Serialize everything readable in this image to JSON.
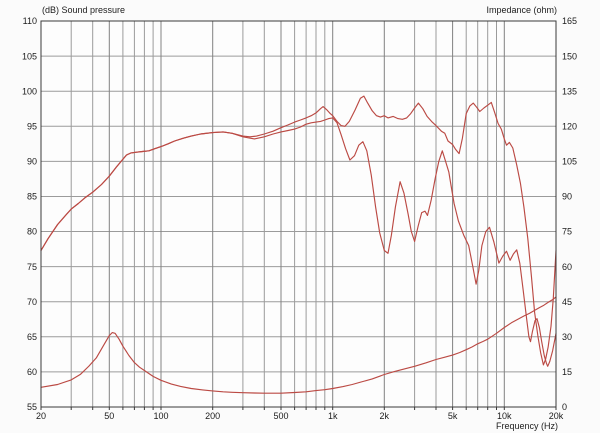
{
  "chart_data": {
    "type": "line",
    "title": "",
    "x_axis": {
      "label": "Frequency  (Hz)",
      "scale": "log",
      "min": 20,
      "max": 20000,
      "ticks": [
        [
          20,
          "20"
        ],
        [
          50,
          "50"
        ],
        [
          100,
          "100"
        ],
        [
          200,
          "200"
        ],
        [
          500,
          "500"
        ],
        [
          1000,
          "1k"
        ],
        [
          2000,
          "2k"
        ],
        [
          5000,
          "5k"
        ],
        [
          10000,
          "10k"
        ],
        [
          20000,
          "20k"
        ]
      ],
      "gridlines": [
        30,
        40,
        50,
        60,
        70,
        80,
        90,
        100,
        200,
        300,
        400,
        500,
        600,
        700,
        800,
        900,
        1000,
        2000,
        3000,
        4000,
        5000,
        6000,
        7000,
        8000,
        9000,
        10000
      ],
      "major_gridlines": [
        50,
        100,
        200,
        500,
        1000,
        2000,
        5000,
        10000
      ]
    },
    "y_left": {
      "label": "(dB)  Sound pressure",
      "min": 55,
      "max": 110,
      "step": 5,
      "ticks": [
        [
          110,
          "110"
        ],
        [
          105,
          "105"
        ],
        [
          100,
          "100"
        ],
        [
          95,
          "95"
        ],
        [
          90,
          "90"
        ],
        [
          85,
          "85"
        ],
        [
          80,
          "80"
        ],
        [
          75,
          "75"
        ],
        [
          70,
          "70"
        ],
        [
          65,
          "65"
        ],
        [
          60,
          "60"
        ],
        [
          55,
          "55"
        ]
      ]
    },
    "y_right": {
      "label": "Impedance  (ohm)",
      "min": 0,
      "max": 165,
      "step": 15,
      "ticks": [
        [
          165,
          "165"
        ],
        [
          150,
          "150"
        ],
        [
          135,
          "135"
        ],
        [
          120,
          "120"
        ],
        [
          105,
          "105"
        ],
        [
          90,
          "90"
        ],
        [
          75,
          "75"
        ],
        [
          60,
          "60"
        ],
        [
          45,
          "45"
        ],
        [
          30,
          "30"
        ],
        [
          15,
          "15"
        ],
        [
          0,
          "0"
        ]
      ]
    },
    "curve_color": "#bb4a44",
    "grid_minor_color": "#9b9b9b",
    "grid_major_color": "#828282",
    "border_color": "#3a3a3a",
    "series": [
      {
        "name": "spl-on-axis",
        "axis": "left",
        "unit": "dB",
        "points": [
          [
            20,
            77.3
          ],
          [
            22,
            79
          ],
          [
            25,
            81
          ],
          [
            28,
            82.4
          ],
          [
            30,
            83.2
          ],
          [
            33,
            84
          ],
          [
            36,
            84.8
          ],
          [
            40,
            85.6
          ],
          [
            45,
            86.7
          ],
          [
            50,
            87.9
          ],
          [
            55,
            89.2
          ],
          [
            60,
            90.3
          ],
          [
            63,
            90.9
          ],
          [
            67,
            91.2
          ],
          [
            72,
            91.3
          ],
          [
            78,
            91.4
          ],
          [
            85,
            91.5
          ],
          [
            92,
            91.8
          ],
          [
            100,
            92.1
          ],
          [
            110,
            92.5
          ],
          [
            120,
            92.9
          ],
          [
            135,
            93.3
          ],
          [
            150,
            93.6
          ],
          [
            170,
            93.9
          ],
          [
            200,
            94.1
          ],
          [
            230,
            94.2
          ],
          [
            260,
            94
          ],
          [
            300,
            93.6
          ],
          [
            330,
            93.5
          ],
          [
            360,
            93.6
          ],
          [
            400,
            93.9
          ],
          [
            450,
            94.3
          ],
          [
            500,
            94.8
          ],
          [
            550,
            95.2
          ],
          [
            600,
            95.6
          ],
          [
            650,
            95.9
          ],
          [
            700,
            96.2
          ],
          [
            750,
            96.5
          ],
          [
            800,
            96.9
          ],
          [
            850,
            97.5
          ],
          [
            880,
            97.8
          ],
          [
            920,
            97.4
          ],
          [
            960,
            96.9
          ],
          [
            1000,
            96.5
          ],
          [
            1060,
            95.7
          ],
          [
            1120,
            95.1
          ],
          [
            1180,
            95
          ],
          [
            1250,
            95.7
          ],
          [
            1350,
            97.3
          ],
          [
            1450,
            99
          ],
          [
            1520,
            99.3
          ],
          [
            1600,
            98.3
          ],
          [
            1700,
            97.2
          ],
          [
            1800,
            96.5
          ],
          [
            1900,
            96.3
          ],
          [
            2000,
            96.5
          ],
          [
            2100,
            96.2
          ],
          [
            2250,
            96.4
          ],
          [
            2400,
            96.1
          ],
          [
            2550,
            96
          ],
          [
            2700,
            96.2
          ],
          [
            2850,
            96.8
          ],
          [
            3000,
            97.6
          ],
          [
            3160,
            98.3
          ],
          [
            3350,
            97.5
          ],
          [
            3550,
            96.4
          ],
          [
            3800,
            95.6
          ],
          [
            4000,
            95.1
          ],
          [
            4300,
            94.3
          ],
          [
            4500,
            94
          ],
          [
            4700,
            92.9
          ],
          [
            5000,
            92.4
          ],
          [
            5200,
            91.7
          ],
          [
            5450,
            91.1
          ],
          [
            5700,
            93.3
          ],
          [
            6000,
            96.8
          ],
          [
            6300,
            97.9
          ],
          [
            6600,
            98.3
          ],
          [
            6900,
            97.7
          ],
          [
            7200,
            97.1
          ],
          [
            7600,
            97.6
          ],
          [
            8000,
            98
          ],
          [
            8400,
            98.4
          ],
          [
            8800,
            96.9
          ],
          [
            9200,
            95.4
          ],
          [
            9600,
            94.6
          ],
          [
            10000,
            93.2
          ],
          [
            10300,
            92.3
          ],
          [
            10700,
            92.7
          ],
          [
            11200,
            91.9
          ],
          [
            11800,
            89.5
          ],
          [
            12400,
            86.9
          ],
          [
            13000,
            83.5
          ],
          [
            13700,
            79
          ],
          [
            14400,
            73.5
          ],
          [
            15000,
            68.5
          ],
          [
            15700,
            65
          ],
          [
            16300,
            62.7
          ],
          [
            16900,
            61
          ],
          [
            17400,
            61.8
          ],
          [
            18000,
            63.5
          ],
          [
            18700,
            66.5
          ],
          [
            19300,
            70.5
          ],
          [
            20000,
            77.3
          ]
        ]
      },
      {
        "name": "spl-off-axis",
        "axis": "left",
        "unit": "dB",
        "points": [
          [
            20,
            77.3
          ],
          [
            22,
            79
          ],
          [
            25,
            81
          ],
          [
            28,
            82.4
          ],
          [
            30,
            83.2
          ],
          [
            33,
            84
          ],
          [
            36,
            84.8
          ],
          [
            40,
            85.6
          ],
          [
            45,
            86.7
          ],
          [
            50,
            87.9
          ],
          [
            55,
            89.2
          ],
          [
            60,
            90.3
          ],
          [
            63,
            90.9
          ],
          [
            67,
            91.2
          ],
          [
            72,
            91.3
          ],
          [
            78,
            91.4
          ],
          [
            85,
            91.5
          ],
          [
            92,
            91.8
          ],
          [
            100,
            92.1
          ],
          [
            110,
            92.5
          ],
          [
            120,
            92.9
          ],
          [
            135,
            93.3
          ],
          [
            150,
            93.6
          ],
          [
            170,
            93.9
          ],
          [
            200,
            94.1
          ],
          [
            230,
            94.2
          ],
          [
            260,
            94
          ],
          [
            300,
            93.5
          ],
          [
            350,
            93.2
          ],
          [
            400,
            93.5
          ],
          [
            450,
            93.9
          ],
          [
            500,
            94.2
          ],
          [
            550,
            94.4
          ],
          [
            600,
            94.6
          ],
          [
            650,
            94.9
          ],
          [
            700,
            95.3
          ],
          [
            750,
            95.5
          ],
          [
            800,
            95.6
          ],
          [
            850,
            95.7
          ],
          [
            900,
            95.9
          ],
          [
            950,
            96.1
          ],
          [
            1000,
            96.2
          ],
          [
            1060,
            95.5
          ],
          [
            1120,
            93.8
          ],
          [
            1190,
            91.8
          ],
          [
            1260,
            90.2
          ],
          [
            1340,
            90.8
          ],
          [
            1420,
            92.3
          ],
          [
            1500,
            92.8
          ],
          [
            1580,
            91.5
          ],
          [
            1680,
            88
          ],
          [
            1780,
            83.5
          ],
          [
            1880,
            79.8
          ],
          [
            2000,
            77.3
          ],
          [
            2100,
            76.9
          ],
          [
            2200,
            79.5
          ],
          [
            2320,
            83.5
          ],
          [
            2470,
            87.1
          ],
          [
            2600,
            85.5
          ],
          [
            2750,
            82.5
          ],
          [
            2870,
            80
          ],
          [
            3000,
            78.6
          ],
          [
            3150,
            80.8
          ],
          [
            3300,
            82.7
          ],
          [
            3450,
            82.9
          ],
          [
            3570,
            82.3
          ],
          [
            3750,
            84.5
          ],
          [
            3950,
            87.5
          ],
          [
            4150,
            90
          ],
          [
            4350,
            91.5
          ],
          [
            4550,
            90
          ],
          [
            4750,
            88.5
          ],
          [
            4900,
            86.5
          ],
          [
            5100,
            84
          ],
          [
            5400,
            81.5
          ],
          [
            5800,
            79.5
          ],
          [
            6200,
            78
          ],
          [
            6550,
            75
          ],
          [
            6850,
            72.5
          ],
          [
            7100,
            74.5
          ],
          [
            7400,
            78
          ],
          [
            7800,
            80
          ],
          [
            8200,
            80.6
          ],
          [
            8700,
            78.5
          ],
          [
            9300,
            75.5
          ],
          [
            9800,
            76.5
          ],
          [
            10300,
            77.2
          ],
          [
            10800,
            75.9
          ],
          [
            11300,
            76.8
          ],
          [
            11800,
            77.4
          ],
          [
            12300,
            75.5
          ],
          [
            12900,
            71.5
          ],
          [
            13500,
            67.5
          ],
          [
            13900,
            65
          ],
          [
            14200,
            64.3
          ],
          [
            14600,
            65.8
          ],
          [
            15100,
            67.3
          ],
          [
            15500,
            67.6
          ],
          [
            16000,
            66.3
          ],
          [
            16500,
            64.3
          ],
          [
            17100,
            62.3
          ],
          [
            17600,
            61.2
          ],
          [
            17900,
            60.8
          ],
          [
            18400,
            61.5
          ],
          [
            19100,
            63
          ],
          [
            20000,
            65.5
          ]
        ]
      },
      {
        "name": "impedance",
        "axis": "right",
        "unit": "ohm",
        "points": [
          [
            20,
            8.4
          ],
          [
            25,
            9.6
          ],
          [
            30,
            11.6
          ],
          [
            34,
            14
          ],
          [
            38,
            17.5
          ],
          [
            42,
            21
          ],
          [
            46,
            26
          ],
          [
            50,
            30.5
          ],
          [
            52,
            31.8
          ],
          [
            54,
            31.5
          ],
          [
            57,
            29
          ],
          [
            60,
            26
          ],
          [
            65,
            22
          ],
          [
            70,
            19
          ],
          [
            75,
            17
          ],
          [
            80,
            15.6
          ],
          [
            90,
            13.1
          ],
          [
            100,
            11.4
          ],
          [
            115,
            9.8
          ],
          [
            130,
            8.8
          ],
          [
            150,
            7.9
          ],
          [
            175,
            7.3
          ],
          [
            200,
            6.9
          ],
          [
            230,
            6.5
          ],
          [
            260,
            6.3
          ],
          [
            300,
            6.1
          ],
          [
            350,
            6
          ],
          [
            400,
            5.9
          ],
          [
            450,
            5.9
          ],
          [
            500,
            5.9
          ],
          [
            600,
            6.2
          ],
          [
            700,
            6.5
          ],
          [
            800,
            7
          ],
          [
            900,
            7.4
          ],
          [
            1000,
            7.9
          ],
          [
            1150,
            8.7
          ],
          [
            1300,
            9.6
          ],
          [
            1500,
            10.9
          ],
          [
            1700,
            12
          ],
          [
            2000,
            13.9
          ],
          [
            2300,
            15.2
          ],
          [
            2600,
            16.2
          ],
          [
            3000,
            17.4
          ],
          [
            3500,
            18.9
          ],
          [
            4000,
            20.3
          ],
          [
            4500,
            21.3
          ],
          [
            5000,
            22.2
          ],
          [
            5500,
            23.3
          ],
          [
            6000,
            24.5
          ],
          [
            6500,
            25.7
          ],
          [
            7000,
            27
          ],
          [
            7500,
            28
          ],
          [
            8000,
            29
          ],
          [
            9000,
            31.5
          ],
          [
            10000,
            34
          ],
          [
            11000,
            36
          ],
          [
            12000,
            37.5
          ],
          [
            13000,
            38.9
          ],
          [
            14000,
            40
          ],
          [
            15000,
            41.3
          ],
          [
            16000,
            42.5
          ],
          [
            17000,
            43.5
          ],
          [
            18000,
            44.7
          ],
          [
            19000,
            45.8
          ],
          [
            20000,
            47
          ]
        ]
      }
    ]
  }
}
